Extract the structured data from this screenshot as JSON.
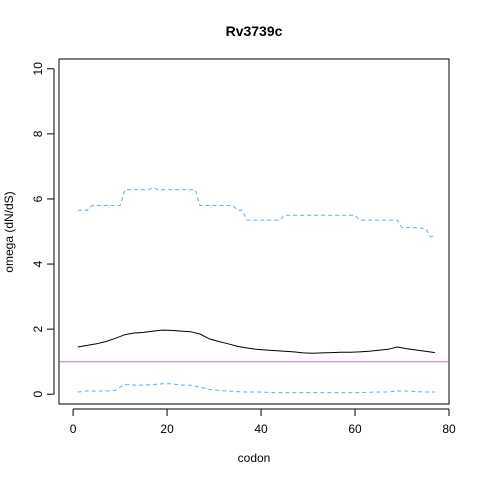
{
  "chart_data": {
    "type": "line",
    "title": "Rv3739c",
    "xlabel": "codon",
    "ylabel": "omega (dN/dS)",
    "xlim": [
      -3,
      80
    ],
    "ylim": [
      -0.3,
      10.3
    ],
    "xticks": [
      0,
      20,
      40,
      60,
      80
    ],
    "yticks": [
      0,
      2,
      4,
      6,
      8,
      10
    ],
    "grid": false,
    "legend": "none",
    "reference_line": {
      "y": 1,
      "color": "#c86bc8"
    },
    "series": [
      {
        "style": "solid",
        "color": "#000000",
        "x": [
          1,
          3,
          5,
          7,
          9,
          11,
          13,
          15,
          17,
          19,
          21,
          23,
          25,
          27,
          29,
          31,
          33,
          35,
          37,
          39,
          41,
          43,
          45,
          47,
          49,
          51,
          53,
          55,
          57,
          59,
          61,
          63,
          65,
          67,
          69,
          71,
          73,
          75,
          77
        ],
        "values": [
          1.45,
          1.5,
          1.55,
          1.62,
          1.72,
          1.83,
          1.88,
          1.9,
          1.94,
          1.97,
          1.96,
          1.94,
          1.92,
          1.85,
          1.7,
          1.62,
          1.55,
          1.47,
          1.42,
          1.38,
          1.36,
          1.34,
          1.32,
          1.3,
          1.27,
          1.26,
          1.27,
          1.28,
          1.29,
          1.29,
          1.3,
          1.32,
          1.35,
          1.38,
          1.45,
          1.4,
          1.36,
          1.32,
          1.28
        ]
      },
      {
        "style": "dashed",
        "color": "#56b4e9",
        "x": [
          1,
          2,
          3,
          4,
          5,
          6,
          7,
          8,
          9,
          10,
          11,
          12,
          13,
          14,
          15,
          16,
          17,
          18,
          19,
          20,
          21,
          22,
          23,
          24,
          25,
          26,
          27,
          28,
          29,
          30,
          31,
          32,
          33,
          34,
          35,
          36,
          37,
          38,
          39,
          40,
          41,
          42,
          43,
          44,
          45,
          46,
          47,
          48,
          49,
          50,
          51,
          52,
          53,
          54,
          55,
          56,
          57,
          58,
          59,
          60,
          61,
          62,
          63,
          64,
          65,
          66,
          67,
          68,
          69,
          70,
          71,
          72,
          73,
          74,
          75,
          76,
          77
        ],
        "values": [
          5.65,
          5.65,
          5.65,
          5.8,
          5.8,
          5.8,
          5.8,
          5.8,
          5.8,
          5.8,
          6.28,
          6.28,
          6.28,
          6.28,
          6.28,
          6.28,
          6.35,
          6.28,
          6.28,
          6.28,
          6.28,
          6.28,
          6.28,
          6.28,
          6.28,
          6.28,
          5.8,
          5.8,
          5.8,
          5.8,
          5.8,
          5.8,
          5.8,
          5.8,
          5.65,
          5.65,
          5.35,
          5.35,
          5.35,
          5.35,
          5.35,
          5.35,
          5.35,
          5.35,
          5.5,
          5.5,
          5.5,
          5.5,
          5.5,
          5.5,
          5.5,
          5.5,
          5.5,
          5.5,
          5.5,
          5.5,
          5.5,
          5.5,
          5.5,
          5.5,
          5.35,
          5.35,
          5.35,
          5.35,
          5.35,
          5.35,
          5.35,
          5.35,
          5.35,
          5.12,
          5.12,
          5.12,
          5.12,
          5.1,
          5.1,
          4.85,
          4.85
        ]
      },
      {
        "style": "dashed",
        "color": "#56b4e9",
        "x": [
          1,
          3,
          5,
          7,
          9,
          10,
          11,
          13,
          15,
          17,
          19,
          21,
          23,
          25,
          27,
          29,
          31,
          33,
          35,
          37,
          39,
          41,
          43,
          45,
          47,
          49,
          51,
          53,
          55,
          57,
          59,
          61,
          63,
          65,
          67,
          69,
          71,
          73,
          75,
          77
        ],
        "values": [
          0.07,
          0.1,
          0.1,
          0.1,
          0.12,
          0.22,
          0.3,
          0.28,
          0.28,
          0.3,
          0.32,
          0.32,
          0.28,
          0.28,
          0.22,
          0.15,
          0.12,
          0.1,
          0.08,
          0.07,
          0.07,
          0.06,
          0.05,
          0.05,
          0.05,
          0.05,
          0.05,
          0.05,
          0.05,
          0.05,
          0.05,
          0.05,
          0.06,
          0.07,
          0.07,
          0.1,
          0.1,
          0.08,
          0.07,
          0.07
        ]
      }
    ]
  }
}
